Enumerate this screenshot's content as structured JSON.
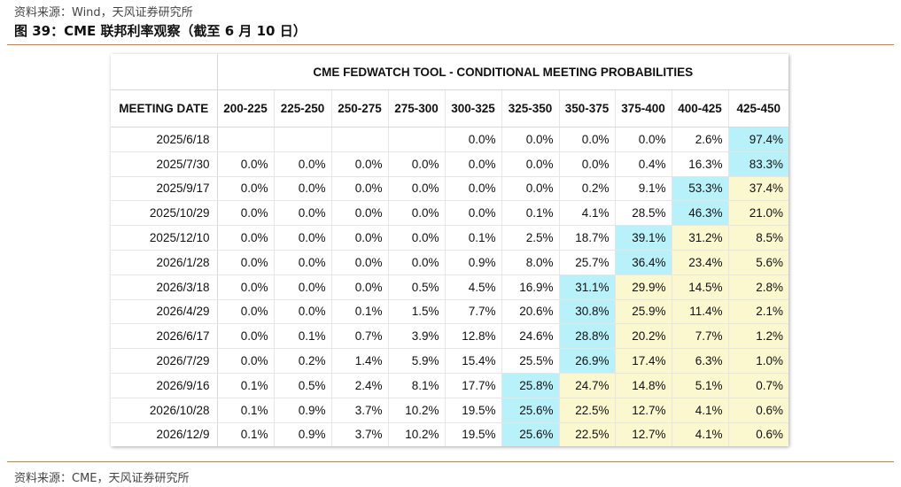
{
  "header": {
    "source": "资料来源：Wind，天风证券研究所",
    "figure_title": "图 39：CME 联邦利率观察（截至 6 月 10 日）"
  },
  "footer": {
    "source": "资料来源：CME，天风证券研究所"
  },
  "colors": {
    "rule": "#e07a2a",
    "highest": "#b9f1fb",
    "above_highest": "#fbf7cf"
  },
  "table": {
    "super_title": "CME FEDWATCH TOOL - CONDITIONAL MEETING PROBABILITIES",
    "date_header": "MEETING DATE",
    "columns": [
      "200-225",
      "225-250",
      "250-275",
      "275-300",
      "300-325",
      "325-350",
      "350-375",
      "375-400",
      "400-425",
      "425-450"
    ],
    "rows": [
      {
        "date": "2025/6/18",
        "values": [
          "",
          "",
          "",
          "",
          "0.0%",
          "0.0%",
          "0.0%",
          "0.0%",
          "2.6%",
          "97.4%"
        ],
        "max": 9
      },
      {
        "date": "2025/7/30",
        "values": [
          "0.0%",
          "0.0%",
          "0.0%",
          "0.0%",
          "0.0%",
          "0.0%",
          "0.0%",
          "0.4%",
          "16.3%",
          "83.3%"
        ],
        "max": 9
      },
      {
        "date": "2025/9/17",
        "values": [
          "0.0%",
          "0.0%",
          "0.0%",
          "0.0%",
          "0.0%",
          "0.0%",
          "0.2%",
          "9.1%",
          "53.3%",
          "37.4%"
        ],
        "max": 8
      },
      {
        "date": "2025/10/29",
        "values": [
          "0.0%",
          "0.0%",
          "0.0%",
          "0.0%",
          "0.0%",
          "0.1%",
          "4.1%",
          "28.5%",
          "46.3%",
          "21.0%"
        ],
        "max": 8
      },
      {
        "date": "2025/12/10",
        "values": [
          "0.0%",
          "0.0%",
          "0.0%",
          "0.0%",
          "0.1%",
          "2.5%",
          "18.7%",
          "39.1%",
          "31.2%",
          "8.5%"
        ],
        "max": 7
      },
      {
        "date": "2026/1/28",
        "values": [
          "0.0%",
          "0.0%",
          "0.0%",
          "0.0%",
          "0.9%",
          "8.0%",
          "25.7%",
          "36.4%",
          "23.4%",
          "5.6%"
        ],
        "max": 7
      },
      {
        "date": "2026/3/18",
        "values": [
          "0.0%",
          "0.0%",
          "0.0%",
          "0.5%",
          "4.5%",
          "16.9%",
          "31.1%",
          "29.9%",
          "14.5%",
          "2.8%"
        ],
        "max": 6
      },
      {
        "date": "2026/4/29",
        "values": [
          "0.0%",
          "0.0%",
          "0.1%",
          "1.5%",
          "7.7%",
          "20.6%",
          "30.8%",
          "25.9%",
          "11.4%",
          "2.1%"
        ],
        "max": 6
      },
      {
        "date": "2026/6/17",
        "values": [
          "0.0%",
          "0.1%",
          "0.7%",
          "3.9%",
          "12.8%",
          "24.6%",
          "28.8%",
          "20.2%",
          "7.7%",
          "1.2%"
        ],
        "max": 6
      },
      {
        "date": "2026/7/29",
        "values": [
          "0.0%",
          "0.2%",
          "1.4%",
          "5.9%",
          "15.4%",
          "25.5%",
          "26.9%",
          "17.4%",
          "6.3%",
          "1.0%"
        ],
        "max": 6
      },
      {
        "date": "2026/9/16",
        "values": [
          "0.1%",
          "0.5%",
          "2.4%",
          "8.1%",
          "17.7%",
          "25.8%",
          "24.7%",
          "14.8%",
          "5.1%",
          "0.7%"
        ],
        "max": 5
      },
      {
        "date": "2026/10/28",
        "values": [
          "0.1%",
          "0.9%",
          "3.7%",
          "10.2%",
          "19.5%",
          "25.6%",
          "22.5%",
          "12.7%",
          "4.1%",
          "0.6%"
        ],
        "max": 5
      },
      {
        "date": "2026/12/9",
        "values": [
          "0.1%",
          "0.9%",
          "3.7%",
          "10.2%",
          "19.5%",
          "25.6%",
          "22.5%",
          "12.7%",
          "4.1%",
          "0.6%"
        ],
        "max": 5
      }
    ]
  }
}
